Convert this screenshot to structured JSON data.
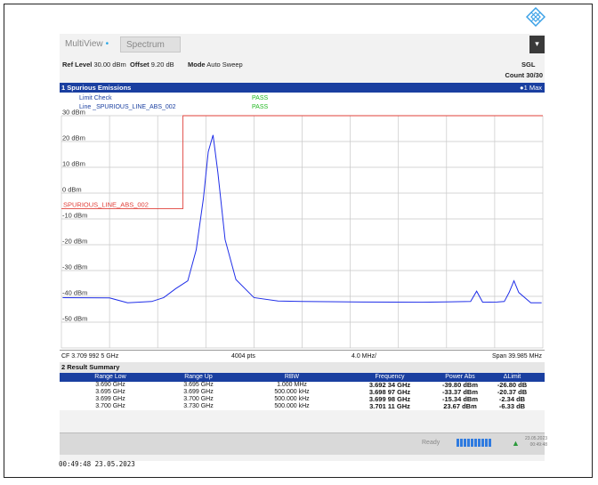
{
  "tabs": {
    "multiview": "MultiView",
    "spectrum": "Spectrum"
  },
  "params": {
    "ref_level_label": "Ref Level",
    "ref_level_value": "30.00 dBm",
    "offset_label": "Offset",
    "offset_value": "9.20 dB",
    "mode_label": "Mode",
    "mode_value": "Auto Sweep",
    "sgl": "SGL",
    "count": "Count 30/30"
  },
  "panel": {
    "title": "1 Spurious Emissions",
    "trace": "1 Max"
  },
  "limit": {
    "check_label": "Limit Check",
    "line_label": "Line _SPURIOUS_LINE_ABS_002",
    "result1": "PASS",
    "result2": "PASS",
    "line_name": "SPURIOUS_LINE_ABS_002"
  },
  "chart_data": {
    "type": "line",
    "y_ticks": [
      "30 dBm",
      "20 dBm",
      "10 dBm",
      "0 dBm",
      "-10 dBm",
      "-20 dBm",
      "-30 dBm",
      "-40 dBm",
      "-50 dBm"
    ],
    "ylim": [
      -60,
      30
    ],
    "xlim_ghz": [
      3.69,
      3.73
    ],
    "grid": true,
    "series": [
      {
        "color": "#1f2ee8",
        "x": [
          3.6901,
          3.694,
          3.6955,
          3.6975,
          3.6985,
          3.6995,
          3.7005,
          3.7012,
          3.7018,
          3.7022,
          3.7026,
          3.703,
          3.7036,
          3.7045,
          3.706,
          3.708,
          3.71,
          3.715,
          3.72,
          3.724,
          3.7245,
          3.725,
          3.7262,
          3.7268,
          3.7272,
          3.7276,
          3.728,
          3.729,
          3.7299
        ],
        "y": [
          -40.5,
          -40.6,
          -42.5,
          -42.0,
          -40.5,
          -37.0,
          -34.0,
          -22.0,
          -2.0,
          16.0,
          22.5,
          8.0,
          -18.0,
          -33.5,
          -40.5,
          -41.8,
          -42.0,
          -42.2,
          -42.3,
          -42.0,
          -38.0,
          -42.3,
          -42.2,
          -42.0,
          -38.5,
          -34.0,
          -38.5,
          -42.5,
          -42.5
        ]
      }
    ],
    "limit_line": {
      "x": [
        3.69,
        3.7001,
        3.7001,
        3.73
      ],
      "y": [
        -6.0,
        -6.0,
        30.0,
        30.0
      ],
      "color": "#e0403a"
    }
  },
  "footer": {
    "cf": "CF 3.709 992 5 GHz",
    "pts": "4004 pts",
    "div": "4.0 MHz/",
    "span": "Span 39.985 MHz"
  },
  "result_summary": {
    "title": "2 Result Summary",
    "headers": [
      "Range Low",
      "Range Up",
      "RBW",
      "Frequency",
      "Power Abs",
      "ΔLimit"
    ],
    "rows": [
      [
        "3.690 GHz",
        "3.695 GHz",
        "1.000 MHz",
        "3.692 34 GHz",
        "-39.80 dBm",
        "-26.80 dB"
      ],
      [
        "3.695 GHz",
        "3.699 GHz",
        "500.000 kHz",
        "3.698 97 GHz",
        "-33.37 dBm",
        "-20.37 dB"
      ],
      [
        "3.699 GHz",
        "3.700 GHz",
        "500.000 kHz",
        "3.699 98 GHz",
        "-15.34 dBm",
        "-2.34 dB"
      ],
      [
        "3.700 GHz",
        "3.730 GHz",
        "500.000 kHz",
        "3.701 11 GHz",
        "23.67 dBm",
        "-6.33 dB"
      ]
    ]
  },
  "status": {
    "ready": "Ready",
    "date": "23.05.2023",
    "time": "00:49:48"
  },
  "timestamp": "00:49:48  23.05.2023",
  "icons": {
    "logo": "rs-diamond-logo-icon",
    "menu": "menu-icon",
    "measure": "measure-icon"
  }
}
